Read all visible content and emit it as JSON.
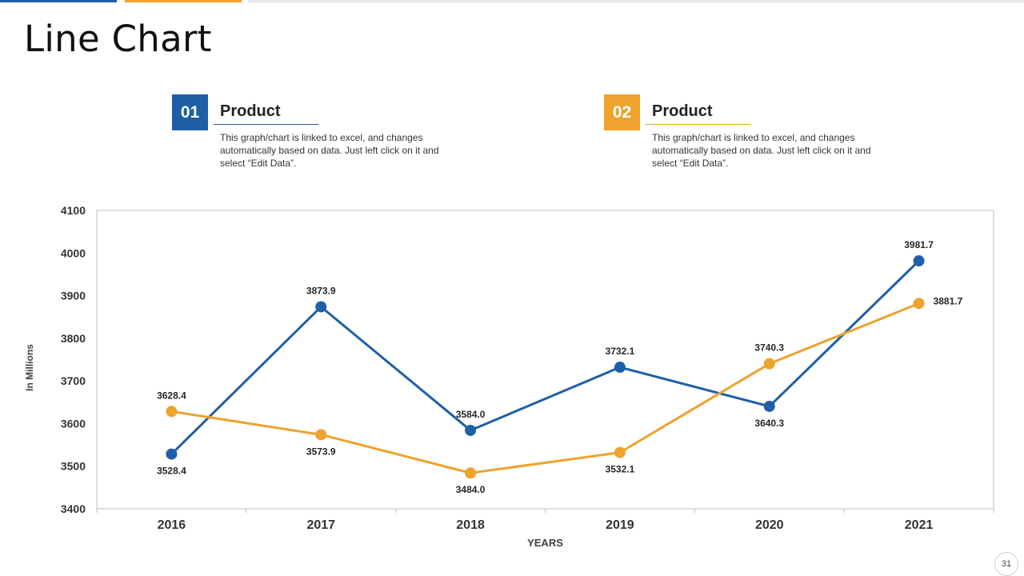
{
  "page": {
    "title": "Line Chart",
    "page_number": "31"
  },
  "cards": [
    {
      "number": "01",
      "heading": "Product",
      "text": "This graph/chart is linked to excel, and changes automatically based on data. Just left click on it and select “Edit Data”.",
      "color": "#1f5fa6"
    },
    {
      "number": "02",
      "heading": "Product",
      "text": "This graph/chart is linked to excel, and changes automatically based on data. Just left click on it and select “Edit Data”.",
      "color": "#eda32d"
    }
  ],
  "chart_data": {
    "type": "line",
    "title": "",
    "xlabel": "YEARS",
    "ylabel": "In Millions",
    "categories": [
      "2016",
      "2017",
      "2018",
      "2019",
      "2020",
      "2021"
    ],
    "ylim": [
      3400,
      4100
    ],
    "yticks": [
      3400,
      3500,
      3600,
      3700,
      3800,
      3900,
      4000,
      4100
    ],
    "series": [
      {
        "name": "Product 01",
        "color": "#1f5fa6",
        "values": [
          3528.4,
          3873.9,
          3584.0,
          3732.1,
          3640.3,
          3981.7
        ]
      },
      {
        "name": "Product 02",
        "color": "#eda32d",
        "values": [
          3628.4,
          3573.9,
          3484.0,
          3532.1,
          3740.3,
          3881.7
        ]
      }
    ]
  }
}
